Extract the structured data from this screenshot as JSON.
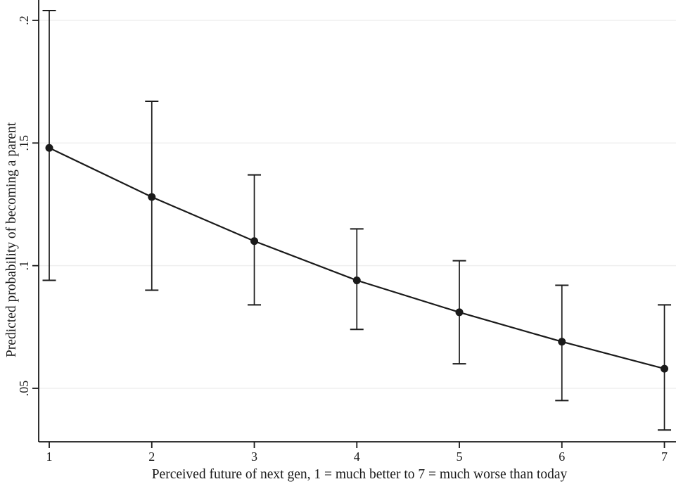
{
  "figure": {
    "background": "#ffffff",
    "line_color": "#1a1a1a",
    "grid_color": "#efefef",
    "text_color": "#1a1a1a"
  },
  "chart_data": {
    "type": "line",
    "subtype": "point-estimates-with-confidence-intervals",
    "title": "",
    "xlabel": "Perceived future of next gen, 1 = much better to 7 = much worse than today",
    "ylabel": "Predicted probability of becoming a parent",
    "x": [
      1,
      2,
      3,
      4,
      5,
      6,
      7
    ],
    "x_tick_labels": [
      "1",
      "2",
      "3",
      "4",
      "5",
      "6",
      "7"
    ],
    "series": [
      {
        "name": "Predicted probability of becoming a parent",
        "values": [
          0.148,
          0.128,
          0.11,
          0.094,
          0.081,
          0.069,
          0.058
        ],
        "ci_lower": [
          0.094,
          0.09,
          0.084,
          0.074,
          0.06,
          0.045,
          0.033
        ],
        "ci_upper": [
          0.204,
          0.167,
          0.137,
          0.115,
          0.102,
          0.092,
          0.084
        ]
      }
    ],
    "y_ticks": {
      "values": [
        0.05,
        0.1,
        0.15,
        0.2
      ],
      "labels": [
        ".05",
        ".1",
        ".15",
        ".2"
      ]
    },
    "ylim": [
      0.0282,
      0.2083
    ],
    "xlim": [
      0.897,
      7.113
    ],
    "grid": "horizontal",
    "legend": "none",
    "marker": "filled-circle",
    "error_bars": true
  }
}
